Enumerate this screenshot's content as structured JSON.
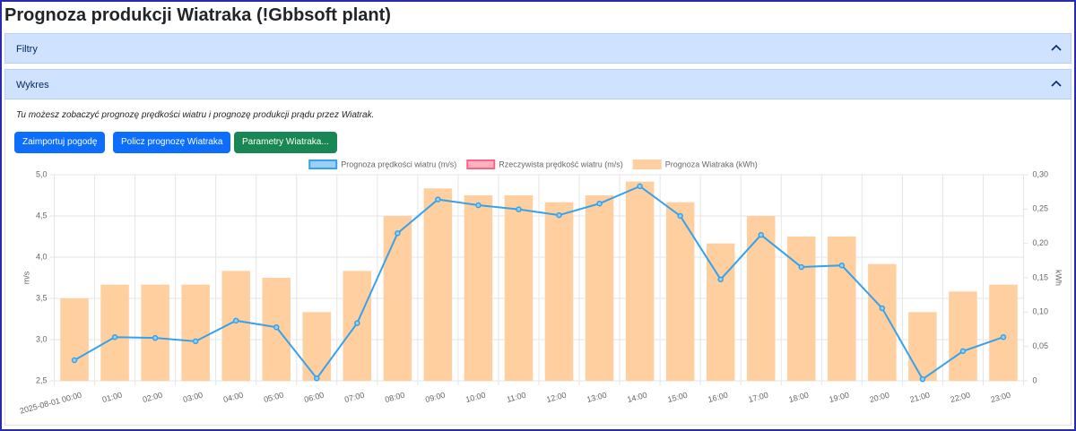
{
  "header": {
    "title": "Prognoza produkcji Wiatraka (!Gbbsoft plant)"
  },
  "panels": [
    {
      "title": "Filtry"
    },
    {
      "title": "Wykres"
    }
  ],
  "description": "Tu możesz zobaczyć prognozę prędkości wiatru i prognozę produkcji prądu przez Wiatrak.",
  "buttons": [
    {
      "label": "Zaimportuj pogodę",
      "color": "#0d6efd"
    },
    {
      "label": "Policz prognozę Wiatraka",
      "color": "#0d6efd"
    },
    {
      "label": "Parametry Wiatraka...",
      "color": "#198754"
    }
  ],
  "chart_data": {
    "type": "bar",
    "categories": [
      "2025-08-01 00:00",
      "01:00",
      "02:00",
      "03:00",
      "04:00",
      "05:00",
      "06:00",
      "07:00",
      "08:00",
      "09:00",
      "10:00",
      "11:00",
      "12:00",
      "13:00",
      "14:00",
      "15:00",
      "16:00",
      "17:00",
      "18:00",
      "19:00",
      "20:00",
      "21:00",
      "22:00",
      "23:00"
    ],
    "series": [
      {
        "name": "Prognoza prędkości wiatru (m/s)",
        "type": "line",
        "axis": "y",
        "color": "#36a2eb",
        "fill": "#9ad0f5",
        "values": [
          2.75,
          3.03,
          3.02,
          2.98,
          3.23,
          3.15,
          2.53,
          3.2,
          4.29,
          4.7,
          4.63,
          4.58,
          4.51,
          4.65,
          4.86,
          4.5,
          3.73,
          4.27,
          3.88,
          3.9,
          3.38,
          2.52,
          2.86,
          3.03
        ]
      },
      {
        "name": "Rzeczywista prędkość wiatru (m/s)",
        "type": "line",
        "axis": "y",
        "color": "#ff6384",
        "fill": "#ffb1c1",
        "values": [
          null,
          null,
          null,
          null,
          null,
          null,
          null,
          null,
          null,
          null,
          null,
          null,
          null,
          null,
          null,
          null,
          null,
          null,
          null,
          null,
          null,
          null,
          null,
          null
        ]
      },
      {
        "name": "Prognoza Wiatraka (kWh)",
        "type": "bar",
        "axis": "y2",
        "color": "#ffcf9f",
        "fill": "#ffcf9f",
        "values": [
          0.12,
          0.14,
          0.14,
          0.14,
          0.16,
          0.15,
          0.1,
          0.16,
          0.24,
          0.28,
          0.27,
          0.27,
          0.26,
          0.27,
          0.29,
          0.26,
          0.2,
          0.24,
          0.21,
          0.21,
          0.17,
          0.1,
          0.13,
          0.14
        ]
      }
    ],
    "ylabel": "m/s",
    "y2label": "kWh",
    "ylim": [
      2.5,
      5.0
    ],
    "yticks": [
      {
        "value": 2.5,
        "label": "2,5"
      },
      {
        "value": 3.0,
        "label": "3,0"
      },
      {
        "value": 3.5,
        "label": "3,5"
      },
      {
        "value": 4.0,
        "label": "4,0"
      },
      {
        "value": 4.5,
        "label": "4,5"
      },
      {
        "value": 5.0,
        "label": "5,0"
      }
    ],
    "y2lim": [
      0,
      0.3
    ],
    "y2ticks": [
      0,
      {
        "value": 0.05,
        "label": "0,05"
      },
      {
        "value": 0.1,
        "label": "0,10"
      },
      {
        "value": 0.15,
        "label": "0,15"
      },
      {
        "value": 0.2,
        "label": "0,20"
      },
      {
        "value": 0.25,
        "label": "0,25"
      },
      {
        "value": 0.3,
        "label": "0,30"
      }
    ],
    "grid": true,
    "legend": "top"
  }
}
